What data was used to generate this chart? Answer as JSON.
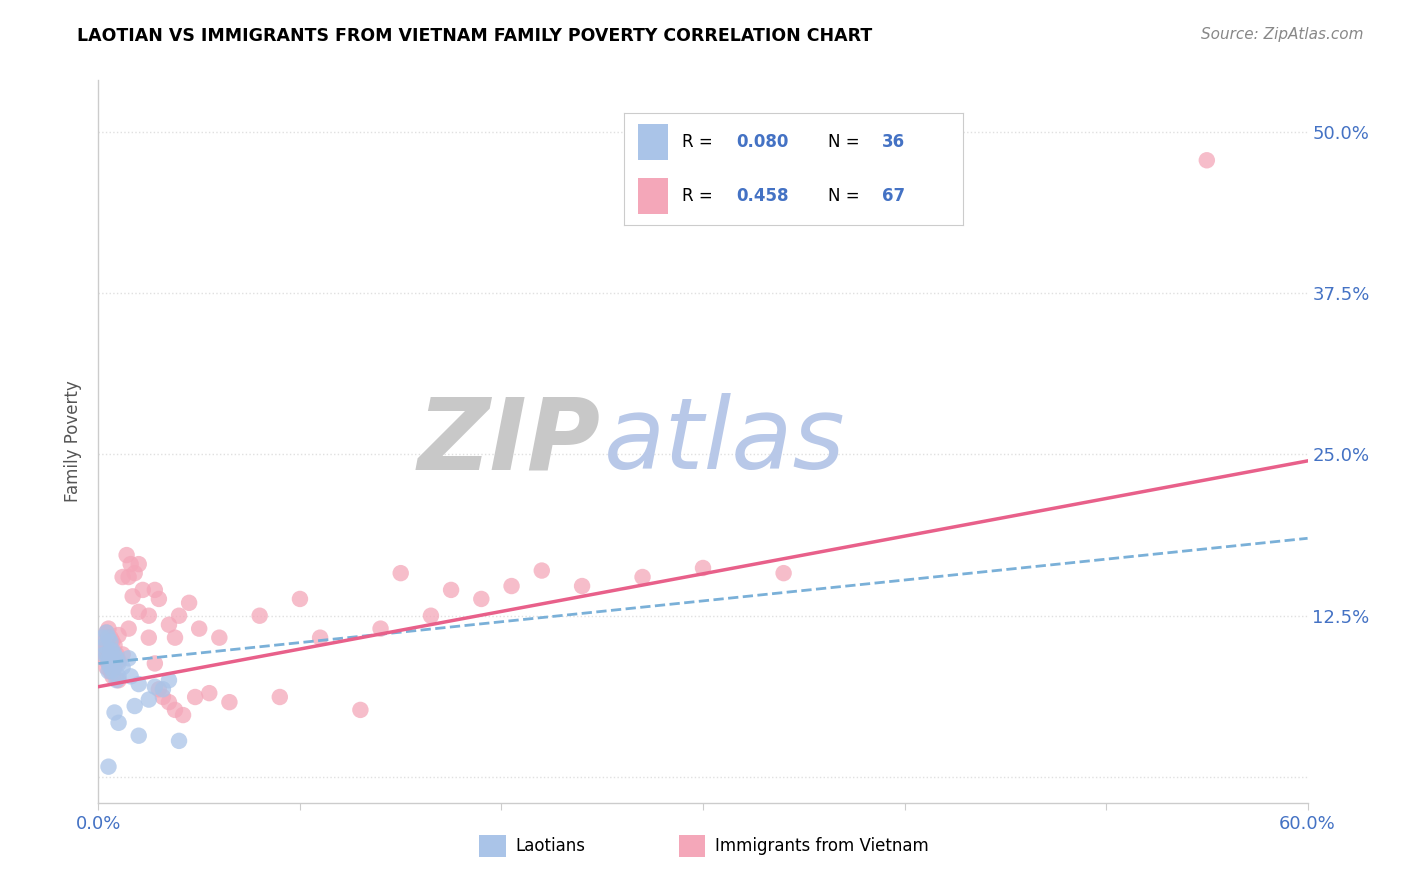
{
  "title": "LAOTIAN VS IMMIGRANTS FROM VIETNAM FAMILY POVERTY CORRELATION CHART",
  "source": "Source: ZipAtlas.com",
  "ylabel": "Family Poverty",
  "xlim": [
    0.0,
    0.6
  ],
  "ylim": [
    -0.02,
    0.54
  ],
  "ytick_positions": [
    0.0,
    0.125,
    0.25,
    0.375,
    0.5
  ],
  "ytick_labels": [
    "",
    "12.5%",
    "25.0%",
    "37.5%",
    "50.0%"
  ],
  "color_laotian": "#aac4e8",
  "color_vietnam": "#f4a7b9",
  "color_line_laotian": "#7ab0d8",
  "color_line_vietnam": "#e8608a",
  "color_text_blue": "#4472c4",
  "watermark_zip_color": "#c8c8c8",
  "watermark_atlas_color": "#b8c8e8",
  "background_color": "#ffffff",
  "grid_color": "#e0e0e0",
  "lao_line_x0": 0.0,
  "lao_line_y0": 0.088,
  "lao_line_x1": 0.6,
  "lao_line_y1": 0.185,
  "viet_line_x0": 0.0,
  "viet_line_y0": 0.07,
  "viet_line_x1": 0.6,
  "viet_line_y1": 0.245,
  "laotian_pts": [
    [
      0.002,
      0.108
    ],
    [
      0.003,
      0.102
    ],
    [
      0.003,
      0.095
    ],
    [
      0.004,
      0.112
    ],
    [
      0.004,
      0.095
    ],
    [
      0.005,
      0.108
    ],
    [
      0.005,
      0.092
    ],
    [
      0.005,
      0.088
    ],
    [
      0.005,
      0.082
    ],
    [
      0.006,
      0.105
    ],
    [
      0.006,
      0.098
    ],
    [
      0.006,
      0.092
    ],
    [
      0.006,
      0.085
    ],
    [
      0.007,
      0.098
    ],
    [
      0.007,
      0.09
    ],
    [
      0.007,
      0.082
    ],
    [
      0.008,
      0.095
    ],
    [
      0.008,
      0.088
    ],
    [
      0.009,
      0.092
    ],
    [
      0.009,
      0.075
    ],
    [
      0.01,
      0.088
    ],
    [
      0.01,
      0.078
    ],
    [
      0.012,
      0.085
    ],
    [
      0.015,
      0.092
    ],
    [
      0.016,
      0.078
    ],
    [
      0.018,
      0.055
    ],
    [
      0.02,
      0.072
    ],
    [
      0.025,
      0.06
    ],
    [
      0.028,
      0.07
    ],
    [
      0.032,
      0.068
    ],
    [
      0.035,
      0.075
    ],
    [
      0.04,
      0.028
    ],
    [
      0.008,
      0.05
    ],
    [
      0.01,
      0.042
    ],
    [
      0.02,
      0.032
    ],
    [
      0.005,
      0.008
    ]
  ],
  "vietnam_pts": [
    [
      0.002,
      0.098
    ],
    [
      0.003,
      0.105
    ],
    [
      0.003,
      0.092
    ],
    [
      0.004,
      0.112
    ],
    [
      0.004,
      0.085
    ],
    [
      0.005,
      0.115
    ],
    [
      0.005,
      0.095
    ],
    [
      0.005,
      0.088
    ],
    [
      0.006,
      0.108
    ],
    [
      0.006,
      0.092
    ],
    [
      0.006,
      0.082
    ],
    [
      0.007,
      0.105
    ],
    [
      0.007,
      0.095
    ],
    [
      0.007,
      0.078
    ],
    [
      0.008,
      0.102
    ],
    [
      0.008,
      0.085
    ],
    [
      0.009,
      0.095
    ],
    [
      0.01,
      0.11
    ],
    [
      0.01,
      0.09
    ],
    [
      0.01,
      0.075
    ],
    [
      0.012,
      0.155
    ],
    [
      0.012,
      0.095
    ],
    [
      0.014,
      0.172
    ],
    [
      0.015,
      0.155
    ],
    [
      0.015,
      0.115
    ],
    [
      0.016,
      0.165
    ],
    [
      0.017,
      0.14
    ],
    [
      0.018,
      0.158
    ],
    [
      0.02,
      0.165
    ],
    [
      0.02,
      0.128
    ],
    [
      0.022,
      0.145
    ],
    [
      0.025,
      0.125
    ],
    [
      0.025,
      0.108
    ],
    [
      0.028,
      0.145
    ],
    [
      0.028,
      0.088
    ],
    [
      0.03,
      0.138
    ],
    [
      0.03,
      0.068
    ],
    [
      0.032,
      0.062
    ],
    [
      0.035,
      0.118
    ],
    [
      0.035,
      0.058
    ],
    [
      0.038,
      0.108
    ],
    [
      0.038,
      0.052
    ],
    [
      0.04,
      0.125
    ],
    [
      0.042,
      0.048
    ],
    [
      0.045,
      0.135
    ],
    [
      0.048,
      0.062
    ],
    [
      0.05,
      0.115
    ],
    [
      0.055,
      0.065
    ],
    [
      0.06,
      0.108
    ],
    [
      0.065,
      0.058
    ],
    [
      0.08,
      0.125
    ],
    [
      0.09,
      0.062
    ],
    [
      0.1,
      0.138
    ],
    [
      0.11,
      0.108
    ],
    [
      0.13,
      0.052
    ],
    [
      0.14,
      0.115
    ],
    [
      0.15,
      0.158
    ],
    [
      0.165,
      0.125
    ],
    [
      0.175,
      0.145
    ],
    [
      0.19,
      0.138
    ],
    [
      0.205,
      0.148
    ],
    [
      0.22,
      0.16
    ],
    [
      0.24,
      0.148
    ],
    [
      0.27,
      0.155
    ],
    [
      0.3,
      0.162
    ],
    [
      0.34,
      0.158
    ],
    [
      0.55,
      0.478
    ]
  ]
}
